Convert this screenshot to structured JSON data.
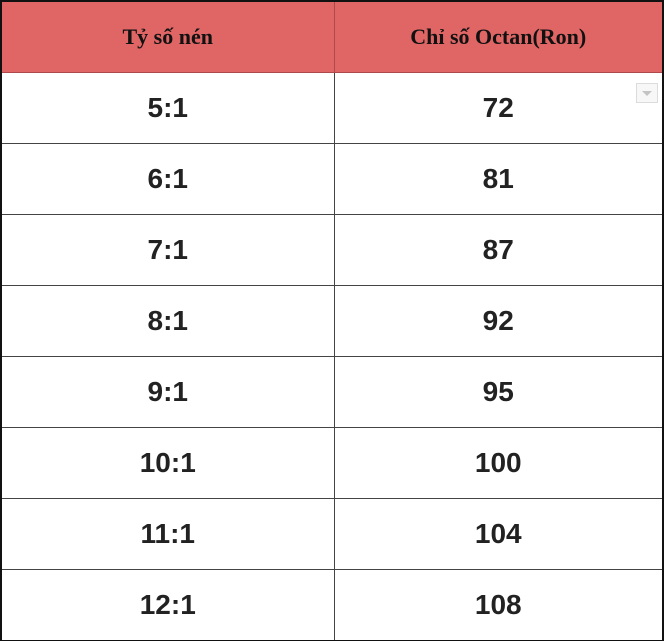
{
  "table": {
    "headers": [
      "Tỷ số nén",
      "Chỉ số Octan(Ron)"
    ],
    "rows": [
      [
        "5:1",
        "72"
      ],
      [
        "6:1",
        "81"
      ],
      [
        "7:1",
        "87"
      ],
      [
        "8:1",
        "92"
      ],
      [
        "9:1",
        "95"
      ],
      [
        "10:1",
        "100"
      ],
      [
        "11:1",
        "104"
      ],
      [
        "12:1",
        "108"
      ]
    ]
  },
  "colors": {
    "header_bg": "#e06565",
    "border": "#444444"
  },
  "icons": {
    "cell_dropdown": "chevron-down-icon"
  }
}
